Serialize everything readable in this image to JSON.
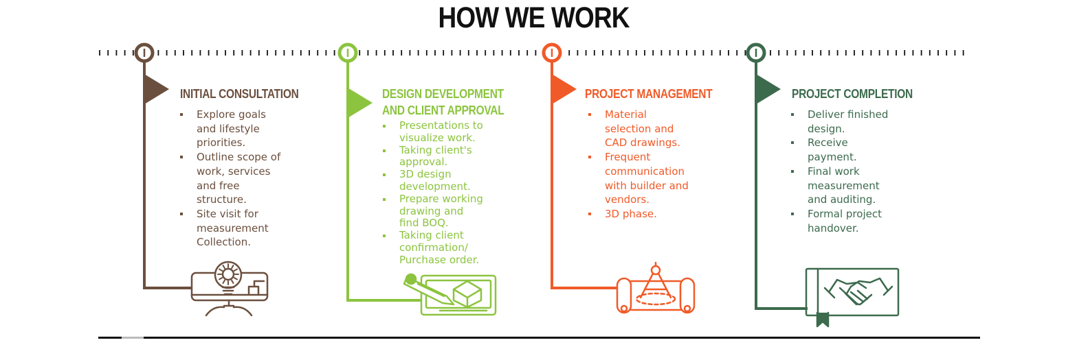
{
  "title": "HOW WE WORK",
  "colors": {
    "step1": "#6b4f3e",
    "step2": "#8cc43f",
    "step3": "#f05a28",
    "step4": "#3c6a4d",
    "ink": "#111111"
  },
  "steps": [
    {
      "title_lines": [
        "INITIAL CONSULTATION"
      ],
      "items": [
        [
          "Explore goals",
          "and lifestyle",
          "priorities."
        ],
        [
          "Outline scope of",
          "work, services",
          "and free",
          "structure."
        ],
        [
          "Site visit for",
          "measurement",
          "Collection."
        ]
      ],
      "icon": "lightbulb-monitor-icon"
    },
    {
      "title_lines": [
        "DESIGN DEVELOPMENT",
        "AND CLIENT APPROVAL"
      ],
      "items": [
        [
          "Presentations to",
          "visualize work."
        ],
        [
          "Taking client's",
          "approval."
        ],
        [
          "3D design",
          "development."
        ],
        [
          "Prepare working",
          "drawing and",
          "find BOQ."
        ],
        [
          "Taking client",
          "confirmation/",
          "Purchase order."
        ]
      ],
      "icon": "pencil-design-board-icon"
    },
    {
      "title_lines": [
        "PROJECT MANAGEMENT"
      ],
      "items": [
        [
          "Material",
          "selection and",
          "CAD drawings."
        ],
        [
          "Frequent",
          "communication",
          "with builder and",
          "vendors."
        ],
        [
          "3D phase."
        ]
      ],
      "icon": "compass-blueprint-icon"
    },
    {
      "title_lines": [
        "PROJECT COMPLETION"
      ],
      "items": [
        [
          "Deliver finished",
          "design."
        ],
        [
          "Receive",
          "payment."
        ],
        [
          "Final work",
          "measurement",
          "and auditing."
        ],
        [
          "Formal project",
          "handover."
        ]
      ],
      "icon": "handshake-book-icon"
    }
  ]
}
